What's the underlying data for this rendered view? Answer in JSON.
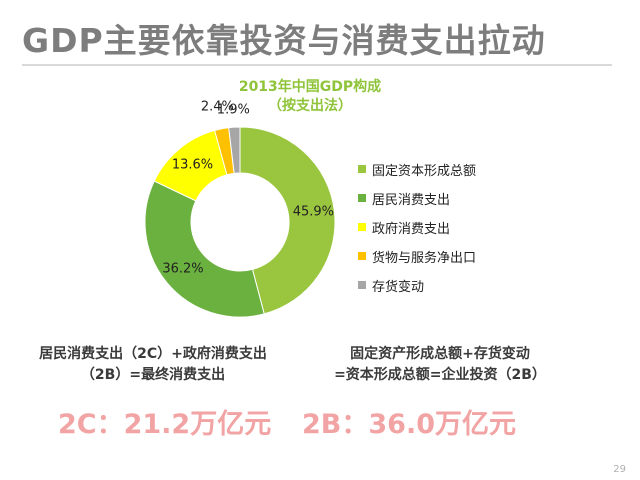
{
  "slide": {
    "title": "GDP主要依靠投资与消费支出拉动",
    "page_number": "29"
  },
  "chart_data": {
    "type": "pie",
    "donut": true,
    "title": "2013年中国GDP构成",
    "subtitle": "（按支出法）",
    "categories": [
      "固定资本形成总额",
      "居民消费支出",
      "政府消费支出",
      "货物与服务净出口",
      "存货变动"
    ],
    "values": [
      45.9,
      36.2,
      13.6,
      2.4,
      1.9
    ],
    "value_labels": [
      "45.9%",
      "36.2%",
      "13.6%",
      "2.4%",
      "1.9%"
    ],
    "colors": [
      "#9ac63f",
      "#6ab13f",
      "#ffff00",
      "#ffc000",
      "#a6a6a6"
    ],
    "legend_placement": "right",
    "start_angle_deg": 0,
    "direction": "clockwise"
  },
  "formulas": {
    "left_line1": "居民消费支出（2C）+政府消费支出",
    "left_line2": "（2B）=最终消费支出",
    "right_line1": "固定资产形成总额+存货变动",
    "right_line2": "=资本形成总额=企业投资（2B）"
  },
  "amounts": {
    "left": "2C：21.2万亿元",
    "right": "2B：36.0万亿元"
  }
}
